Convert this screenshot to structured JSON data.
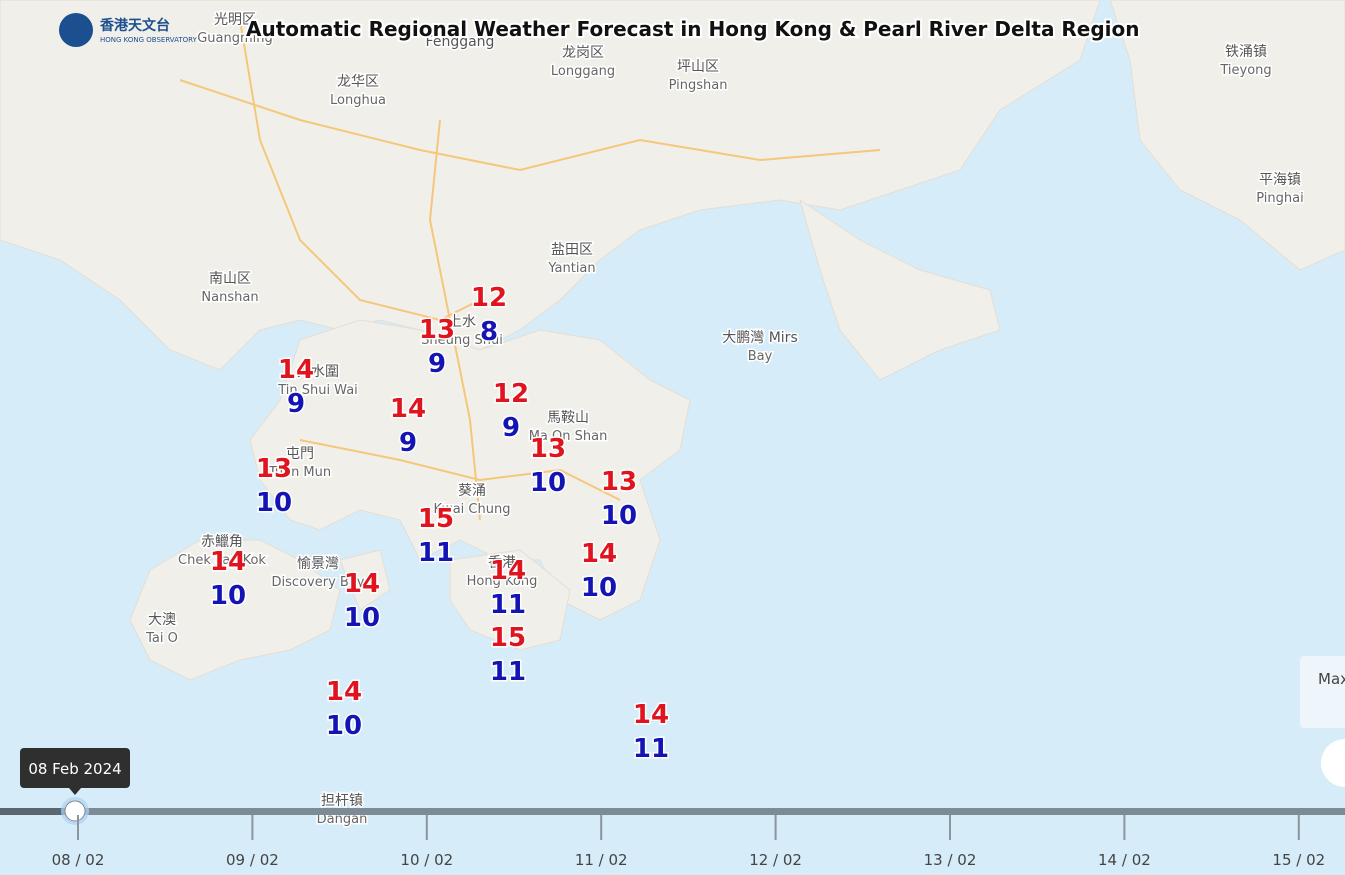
{
  "header": {
    "title": "Automatic Regional Weather Forecast in Hong Kong & Pearl River Delta Region",
    "logo": {
      "chinese": "香港天文台",
      "english": "HONG KONG OBSERVATORY"
    }
  },
  "places": [
    {
      "lines": [
        "光明区",
        "Guangming"
      ]
    },
    {
      "lines": [
        "Fenggang"
      ]
    },
    {
      "lines": [
        "龙岗区",
        "Longgang"
      ]
    },
    {
      "lines": [
        "坪山区",
        "Pingshan"
      ]
    },
    {
      "lines": [
        "龙华区",
        "Longhua"
      ]
    },
    {
      "lines": [
        "铁涌镇",
        "Tieyong"
      ]
    },
    {
      "lines": [
        "平海镇",
        "Pinghai"
      ]
    },
    {
      "lines": [
        "盐田区",
        "Yantian"
      ]
    },
    {
      "lines": [
        "南山区",
        "Nanshan"
      ]
    },
    {
      "lines": [
        "大鹏灣 Mirs",
        "Bay"
      ]
    },
    {
      "lines": [
        "上水",
        "Sheung Shui"
      ]
    },
    {
      "lines": [
        "天水圍",
        "Tin Shui Wai"
      ]
    },
    {
      "lines": [
        "馬鞍山",
        "Ma On Shan"
      ]
    },
    {
      "lines": [
        "屯門",
        "Tuen Mun"
      ]
    },
    {
      "lines": [
        "葵涌",
        "Kwai Chung"
      ]
    },
    {
      "lines": [
        "香港",
        "Hong Kong"
      ]
    },
    {
      "lines": [
        "赤鱲角",
        "Chek Lap Kok"
      ]
    },
    {
      "lines": [
        "愉景灣",
        "Discovery Bay"
      ]
    },
    {
      "lines": [
        "大澳",
        "Tai O"
      ]
    },
    {
      "lines": [
        "担杆镇",
        "Dangan"
      ]
    }
  ],
  "stations": [
    {
      "max": 12,
      "min": 8
    },
    {
      "max": 13,
      "min": 9
    },
    {
      "max": 14,
      "min": 9
    },
    {
      "max": 14,
      "min": 9
    },
    {
      "max": 12,
      "min": 9
    },
    {
      "max": 13,
      "min": 10
    },
    {
      "max": 13,
      "min": 10
    },
    {
      "max": 13,
      "min": 10
    },
    {
      "max": 15,
      "min": 11
    },
    {
      "max": 14,
      "min": 10
    },
    {
      "max": 14,
      "min": 10
    },
    {
      "max": 14,
      "min": 11
    },
    {
      "max": 14,
      "min": 10
    },
    {
      "max": 15,
      "min": 11
    },
    {
      "max": 14,
      "min": 10
    },
    {
      "max": 14,
      "min": 11
    }
  ],
  "legend": {
    "label": "Max"
  },
  "timeline": {
    "tooltip": "08 Feb 2024",
    "ticks": [
      "08 / 02",
      "09 / 02",
      "10 / 02",
      "11 / 02",
      "12 / 02",
      "13 / 02",
      "14 / 02",
      "15 / 02"
    ]
  }
}
